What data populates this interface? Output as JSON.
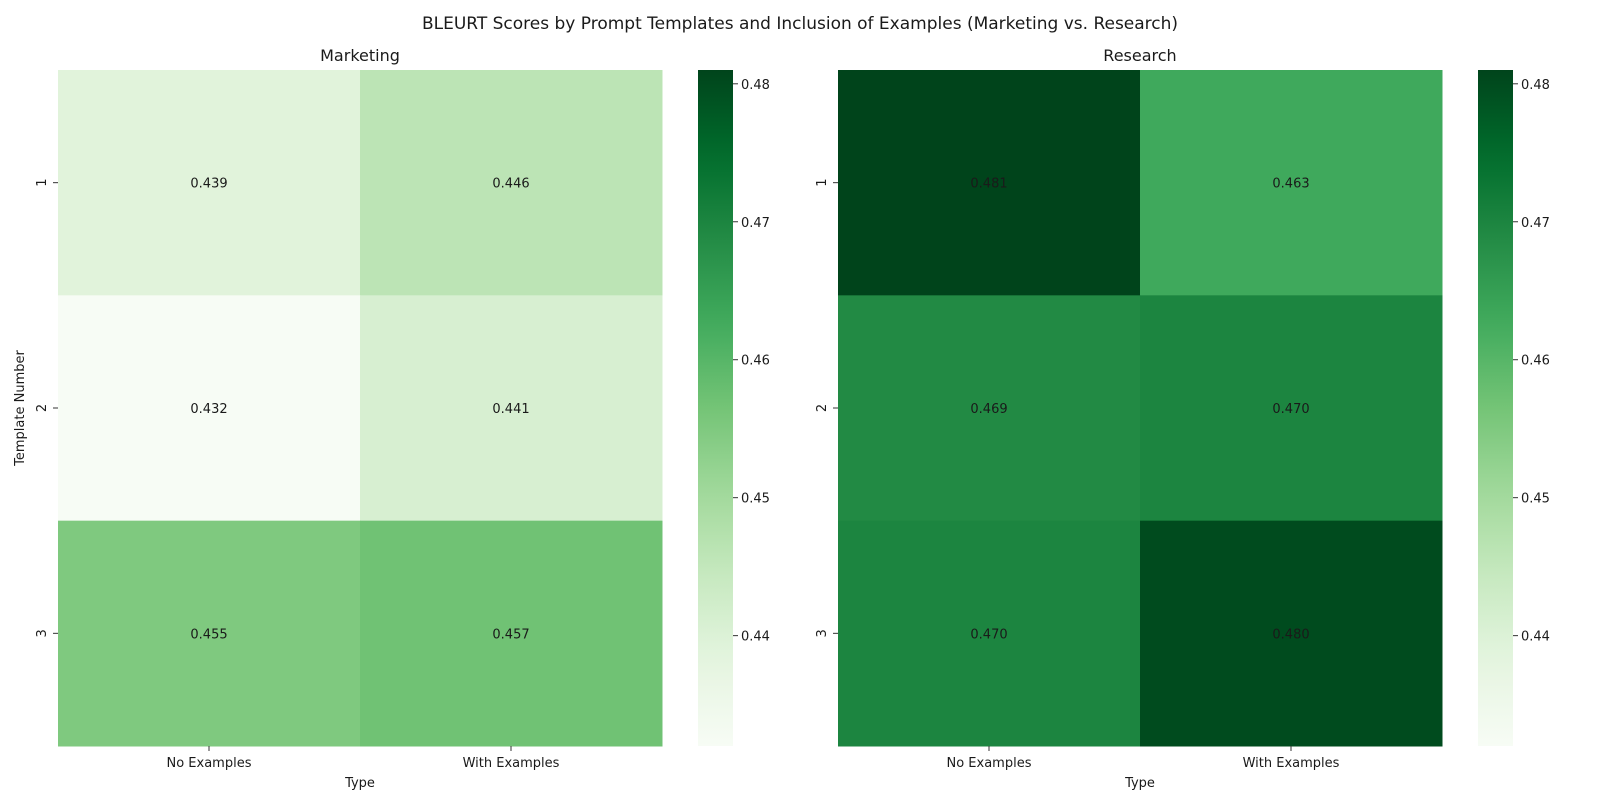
{
  "chart_data": {
    "type": "heatmap",
    "title": "BLEURT Scores by Prompt Templates and Inclusion of Examples (Marketing vs. Research)",
    "colormap": "Greens",
    "color_range": [
      0.432,
      0.481
    ],
    "colorbar_ticks": [
      0.44,
      0.45,
      0.46,
      0.47,
      0.48
    ],
    "colorbar_tick_labels": [
      "0.44",
      "0.45",
      "0.46",
      "0.47",
      "0.48"
    ],
    "panels": [
      {
        "title": "Marketing",
        "xlabel": "Type",
        "ylabel": "Template Number",
        "columns": [
          "No Examples",
          "With Examples"
        ],
        "rows": [
          "1",
          "2",
          "3"
        ],
        "values": [
          [
            0.439,
            0.446
          ],
          [
            0.432,
            0.441
          ],
          [
            0.455,
            0.457
          ]
        ],
        "value_labels": [
          [
            "0.439",
            "0.446"
          ],
          [
            "0.432",
            "0.441"
          ],
          [
            "0.455",
            "0.457"
          ]
        ]
      },
      {
        "title": "Research",
        "xlabel": "Type",
        "ylabel": "",
        "columns": [
          "No Examples",
          "With Examples"
        ],
        "rows": [
          "1",
          "2",
          "3"
        ],
        "values": [
          [
            0.481,
            0.463
          ],
          [
            0.469,
            0.47
          ],
          [
            0.47,
            0.48
          ]
        ],
        "value_labels": [
          [
            "0.481",
            "0.463"
          ],
          [
            "0.469",
            "0.470"
          ],
          [
            "0.470",
            "0.480"
          ]
        ]
      }
    ]
  }
}
